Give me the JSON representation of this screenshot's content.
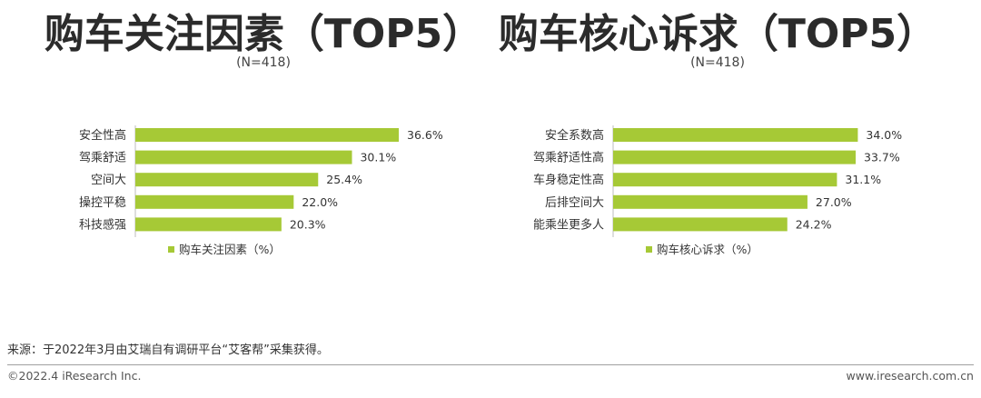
{
  "chart_data": [
    {
      "type": "bar",
      "orientation": "horizontal",
      "title": "购车关注因素（TOP5）",
      "subtitle": "(N=418)",
      "categories": [
        "安全性高",
        "驾乘舒适",
        "空间大",
        "操控平稳",
        "科技感强"
      ],
      "values": [
        36.6,
        30.1,
        25.4,
        22.0,
        20.3
      ],
      "value_labels": [
        "36.6%",
        "30.1%",
        "25.4%",
        "22.0%",
        "20.3%"
      ],
      "series": [
        {
          "name": "购车关注因素（%）",
          "values": [
            36.6,
            30.1,
            25.4,
            22.0,
            20.3
          ]
        }
      ],
      "legend": "bottom",
      "grid": false,
      "xlim": [
        0,
        40
      ],
      "color": "#a6c936"
    },
    {
      "type": "bar",
      "orientation": "horizontal",
      "title": "购车核心诉求（TOP5）",
      "subtitle": "(N=418)",
      "categories": [
        "安全系数高",
        "驾乘舒适性高",
        "车身稳定性高",
        "后排空间大",
        "能乘坐更多人"
      ],
      "values": [
        34.0,
        33.7,
        31.1,
        27.0,
        24.2
      ],
      "value_labels": [
        "34.0%",
        "33.7%",
        "31.1%",
        "27.0%",
        "24.2%"
      ],
      "series": [
        {
          "name": "购车核心诉求（%）",
          "values": [
            34.0,
            33.7,
            31.1,
            27.0,
            24.2
          ]
        }
      ],
      "legend": "bottom",
      "grid": false,
      "xlim": [
        0,
        40
      ],
      "color": "#a6c936"
    }
  ],
  "footer": {
    "source": "来源：于2022年3月由艾瑞自有调研平台“艾客帮”采集获得。",
    "copyright": "©2022.4 iResearch Inc.",
    "url": "www.iresearch.com.cn"
  }
}
